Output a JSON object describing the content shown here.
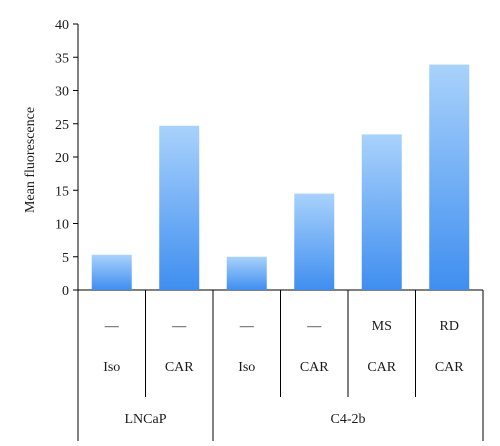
{
  "chart_data": {
    "type": "bar",
    "ylabel": "Mean fluorescence",
    "ylim": [
      0,
      40
    ],
    "yticks": [
      "0",
      "5",
      "10",
      "15",
      "20",
      "25",
      "30",
      "35",
      "40"
    ],
    "categories": [
      {
        "row1": "—",
        "row2": "Iso"
      },
      {
        "row1": "—",
        "row2": "CAR"
      },
      {
        "row1": "—",
        "row2": "Iso"
      },
      {
        "row1": "—",
        "row2": "CAR"
      },
      {
        "row1": "MS",
        "row2": "CAR"
      },
      {
        "row1": "RD",
        "row2": "CAR"
      }
    ],
    "values": [
      5.3,
      24.7,
      5.0,
      14.5,
      23.4,
      33.9
    ],
    "groups": [
      {
        "label": "LNCaP",
        "span": 2
      },
      {
        "label": "C4-2b",
        "span": 4
      }
    ],
    "grid": false,
    "bar_color_top": "#a9d2fb",
    "bar_color_bottom": "#3f8ef0"
  }
}
